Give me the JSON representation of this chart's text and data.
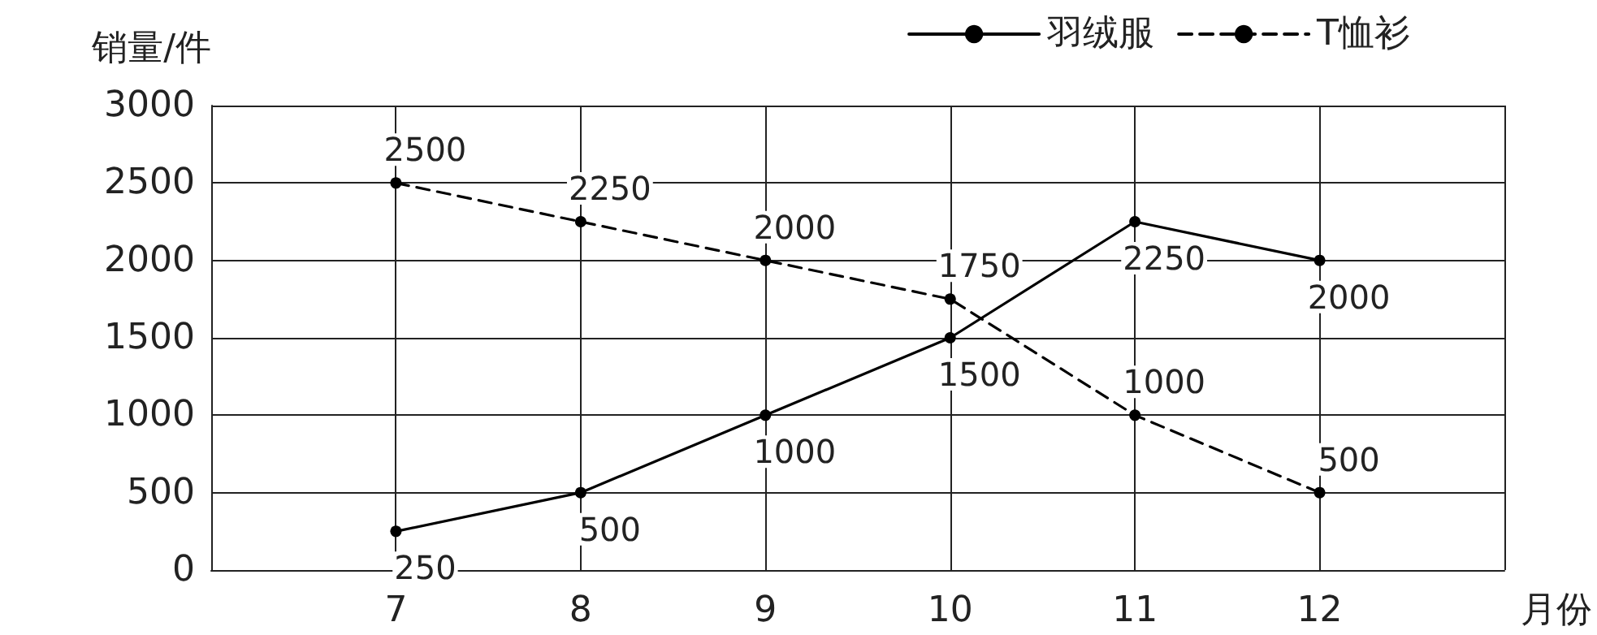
{
  "chart_data": {
    "type": "line",
    "xlabel": "月份",
    "ylabel": "销量/件",
    "x": [
      7,
      8,
      9,
      10,
      11,
      12
    ],
    "xlim": [
      6,
      13
    ],
    "xticks": [
      {
        "value": 6,
        "label": null
      },
      7,
      8,
      9,
      10,
      11,
      12,
      {
        "value": 13,
        "label": null
      }
    ],
    "ylim": [
      0,
      3000
    ],
    "yticks": [
      0,
      500,
      1000,
      1500,
      2000,
      2500,
      3000
    ],
    "series": [
      {
        "name": "羽绒服",
        "color": "#000000",
        "line_style": "solid",
        "values": [
          250,
          500,
          1000,
          1500,
          2250,
          2000
        ]
      },
      {
        "name": "T恤衫",
        "color": "#000000",
        "line_style": "dashed",
        "values": [
          2500,
          2250,
          2000,
          1750,
          1000,
          500
        ]
      }
    ],
    "data_labels": true,
    "grid": true,
    "legend": "top right",
    "marker": "circle"
  }
}
